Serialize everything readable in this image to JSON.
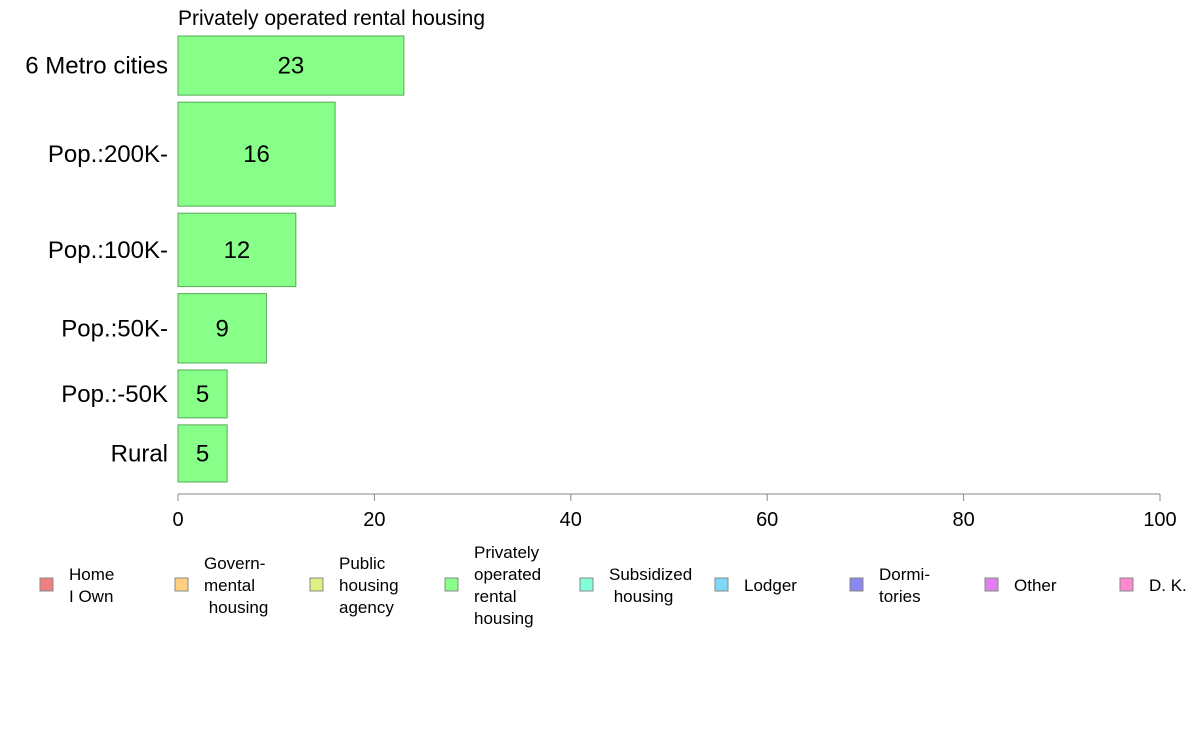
{
  "chart_data": {
    "type": "bar",
    "orientation": "horizontal",
    "title": "Privately operated rental housing",
    "categories": [
      "6 Metro cities",
      "Pop.:200K-",
      "Pop.:100K-",
      "Pop.:50K-",
      "Pop.:-50K",
      "Rural"
    ],
    "values": [
      23,
      16,
      12,
      9,
      5,
      5
    ],
    "data_labels": [
      "23",
      "16",
      "12",
      "9",
      "5",
      "5"
    ],
    "relative_widths": [
      0.58,
      1.02,
      0.72,
      0.68,
      0.47,
      0.56
    ],
    "xlim": [
      0,
      100
    ],
    "xticks": [
      "0",
      "20",
      "40",
      "60",
      "80",
      "100"
    ],
    "bar_color": "#88ff88",
    "bar_stroke": "#55aa55",
    "grid": false,
    "legend_position": "bottom",
    "legend": [
      {
        "lines": [
          "Home",
          "I Own"
        ],
        "color": "#f08080"
      },
      {
        "lines": [
          "Govern-",
          "mental",
          " housing"
        ],
        "color": "#ffd080"
      },
      {
        "lines": [
          "Public",
          "housing",
          "agency"
        ],
        "color": "#e0f080"
      },
      {
        "lines": [
          "Privately",
          "operated",
          "rental",
          "housing"
        ],
        "color": "#88ff88"
      },
      {
        "lines": [
          "Subsidized",
          " housing"
        ],
        "color": "#80ffd8"
      },
      {
        "lines": [
          "Lodger"
        ],
        "color": "#80d8f8"
      },
      {
        "lines": [
          "Dormi-",
          "tories"
        ],
        "color": "#8888f0"
      },
      {
        "lines": [
          "Other"
        ],
        "color": "#e080f0"
      },
      {
        "lines": [
          "D. K."
        ],
        "color": "#ff88d0"
      }
    ]
  }
}
